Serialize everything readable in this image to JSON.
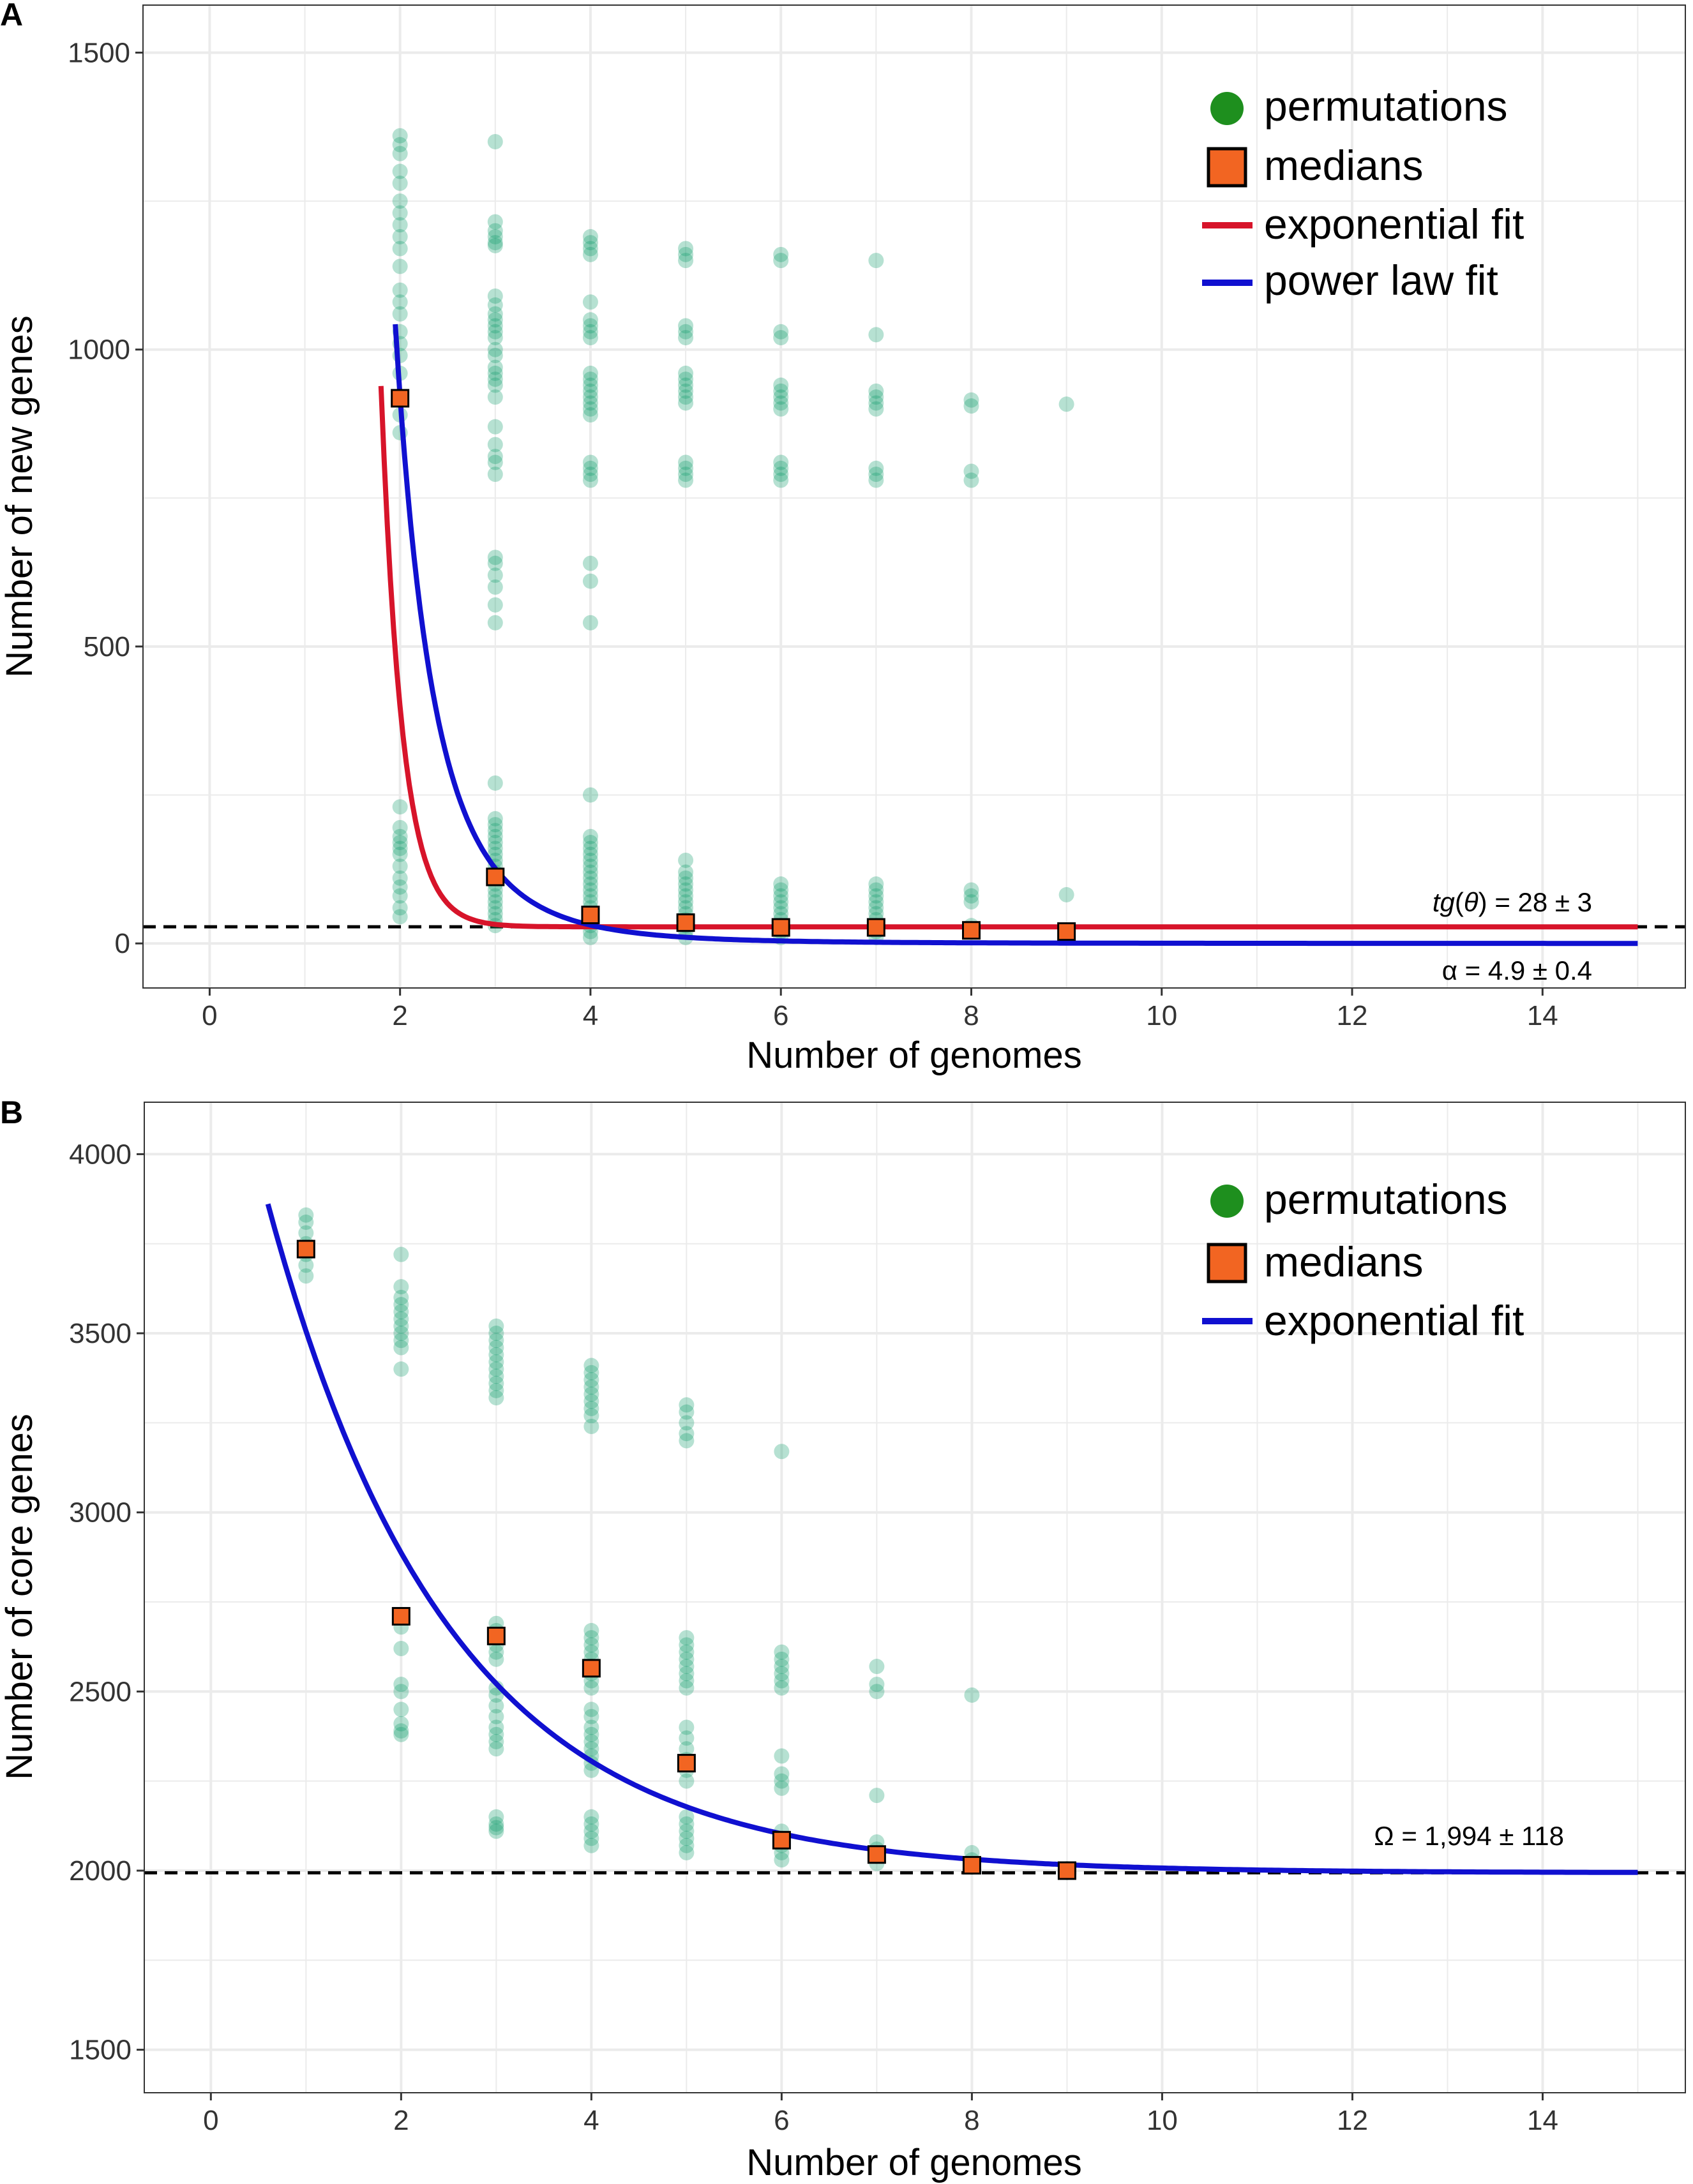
{
  "colors": {
    "permutation": "#0e9a6a",
    "median_fill": "#f26522",
    "median_stroke": "#000000",
    "exp_fit_A": "#d7142a",
    "power_fit_A": "#1010d0",
    "exp_fit_B": "#1010d0",
    "legend_dot": "#1e8f1e",
    "grid": "#ebebeb",
    "panel_border": "#333333"
  },
  "chart_data": [
    {
      "panel_label": "A",
      "type": "scatter",
      "xlabel": "Number of genomes",
      "ylabel": "Number of new genes",
      "xlim": [
        -0.7,
        15.5
      ],
      "ylim": [
        -75,
        1580
      ],
      "xticks": [
        0,
        2,
        4,
        6,
        8,
        10,
        12,
        14
      ],
      "yticks": [
        0,
        500,
        1000,
        1500
      ],
      "legend": [
        "permutations",
        "medians",
        "exponential fit",
        "power law fit"
      ],
      "legend_position": "top-right",
      "permutations": [
        {
          "x": 2,
          "values": [
            1360,
            1345,
            1330,
            1300,
            1280,
            1250,
            1230,
            1210,
            1190,
            1170,
            1140,
            1100,
            1080,
            1060,
            1030,
            1010,
            990,
            960,
            920,
            890,
            860,
            230,
            195,
            180,
            170,
            160,
            150,
            130,
            110,
            95,
            80,
            60,
            45
          ]
        },
        {
          "x": 3,
          "values": [
            1350,
            1215,
            1200,
            1190,
            1180,
            1175,
            1090,
            1075,
            1060,
            1050,
            1040,
            1030,
            1020,
            1000,
            990,
            970,
            960,
            950,
            940,
            920,
            870,
            840,
            820,
            810,
            790,
            650,
            640,
            620,
            600,
            570,
            540,
            270,
            210,
            200,
            190,
            180,
            170,
            160,
            150,
            140,
            130,
            120,
            110,
            100,
            90,
            80,
            70,
            60,
            50,
            40,
            30
          ]
        },
        {
          "x": 4,
          "values": [
            1190,
            1180,
            1170,
            1160,
            1080,
            1050,
            1040,
            1030,
            1020,
            960,
            950,
            940,
            930,
            920,
            910,
            900,
            890,
            810,
            800,
            790,
            780,
            640,
            610,
            540,
            250,
            180,
            170,
            160,
            150,
            140,
            130,
            120,
            110,
            100,
            90,
            80,
            70,
            60,
            50,
            40,
            30,
            20,
            10
          ]
        },
        {
          "x": 5,
          "values": [
            1170,
            1160,
            1150,
            1040,
            1030,
            1020,
            960,
            950,
            940,
            930,
            920,
            910,
            810,
            800,
            790,
            780,
            140,
            120,
            110,
            100,
            90,
            80,
            70,
            60,
            50,
            40,
            30,
            20,
            10
          ]
        },
        {
          "x": 6,
          "values": [
            1160,
            1150,
            1030,
            1020,
            940,
            930,
            920,
            910,
            900,
            810,
            800,
            790,
            780,
            100,
            90,
            80,
            70,
            60,
            50,
            40,
            30,
            20,
            10
          ]
        },
        {
          "x": 7,
          "values": [
            1150,
            1025,
            930,
            920,
            910,
            900,
            800,
            790,
            780,
            100,
            90,
            80,
            70,
            60,
            50,
            40,
            30,
            20,
            10
          ]
        },
        {
          "x": 8,
          "values": [
            915,
            905,
            795,
            780,
            90,
            80,
            70,
            30,
            20
          ]
        },
        {
          "x": 9,
          "values": [
            908,
            82,
            20
          ]
        }
      ],
      "medians": {
        "x": [
          2,
          3,
          4,
          5,
          6,
          7,
          8,
          9
        ],
        "y": [
          918,
          112,
          48,
          35,
          27,
          27,
          22,
          20
        ]
      },
      "exponential_fit": {
        "x_range": [
          1.8,
          15
        ],
        "a": 3000000,
        "b": 4.5,
        "plateau": 28
      },
      "power_law_fit": {
        "x_range": [
          1.95,
          15
        ],
        "k": 27500,
        "alpha": 4.9
      },
      "hline_value": 28,
      "annotation_tg_prefix": "tg",
      "annotation_tg_theta": "θ",
      "annotation_tg_rest": " = 28 ± 3",
      "annotation_alpha": "α = 4.9 ± 0.4"
    },
    {
      "panel_label": "B",
      "type": "scatter",
      "xlabel": "Number of genomes",
      "ylabel": "Number of core genes",
      "xlim": [
        -0.7,
        15.5
      ],
      "ylim": [
        1380,
        4145
      ],
      "xticks": [
        0,
        2,
        4,
        6,
        8,
        10,
        12,
        14
      ],
      "yticks": [
        1500,
        2000,
        2500,
        3000,
        3500,
        4000
      ],
      "legend": [
        "permutations",
        "medians",
        "exponential fit"
      ],
      "legend_position": "top-right",
      "permutations": [
        {
          "x": 1,
          "values": [
            3830,
            3810,
            3780,
            3750,
            3720,
            3690,
            3660
          ]
        },
        {
          "x": 2,
          "values": [
            3720,
            3630,
            3600,
            3580,
            3560,
            3540,
            3520,
            3500,
            3480,
            3460,
            3400,
            2710,
            2680,
            2620,
            2520,
            2500,
            2450,
            2410,
            2390,
            2380
          ]
        },
        {
          "x": 3,
          "values": [
            3520,
            3500,
            3480,
            3460,
            3440,
            3420,
            3400,
            3380,
            3360,
            3340,
            3320,
            2690,
            2670,
            2650,
            2630,
            2610,
            2590,
            2510,
            2490,
            2460,
            2430,
            2400,
            2380,
            2360,
            2340,
            2150,
            2130,
            2120,
            2110
          ]
        },
        {
          "x": 4,
          "values": [
            3410,
            3390,
            3370,
            3350,
            3330,
            3310,
            3290,
            3270,
            3240,
            2670,
            2650,
            2630,
            2610,
            2590,
            2570,
            2550,
            2530,
            2510,
            2450,
            2430,
            2400,
            2380,
            2360,
            2340,
            2320,
            2300,
            2280,
            2150,
            2130,
            2110,
            2090,
            2070
          ]
        },
        {
          "x": 5,
          "values": [
            3300,
            3280,
            3250,
            3220,
            3200,
            2650,
            2630,
            2610,
            2590,
            2570,
            2550,
            2530,
            2510,
            2400,
            2370,
            2340,
            2310,
            2280,
            2250,
            2150,
            2130,
            2110,
            2090,
            2070,
            2050
          ]
        },
        {
          "x": 6,
          "values": [
            3170,
            2610,
            2590,
            2570,
            2550,
            2530,
            2510,
            2320,
            2270,
            2250,
            2230,
            2110,
            2090,
            2070,
            2050,
            2030
          ]
        },
        {
          "x": 7,
          "values": [
            2570,
            2520,
            2500,
            2210,
            2080,
            2060,
            2040,
            2020
          ]
        },
        {
          "x": 8,
          "values": [
            2490,
            2050,
            2030,
            2010
          ]
        },
        {
          "x": 9,
          "values": [
            2005,
            1995
          ]
        }
      ],
      "medians": {
        "x": [
          1,
          2,
          3,
          4,
          5,
          6,
          7,
          8,
          9
        ],
        "y": [
          3735,
          2710,
          2655,
          2565,
          2300,
          2085,
          2045,
          2015,
          2000
        ]
      },
      "exponential_fit": {
        "x_range": [
          0.6,
          15
        ],
        "a": 2560,
        "b": 1.9,
        "plateau": 1994
      },
      "hline_value": 1994,
      "annotation_omega": "Ω = 1,994 ± 118"
    }
  ]
}
